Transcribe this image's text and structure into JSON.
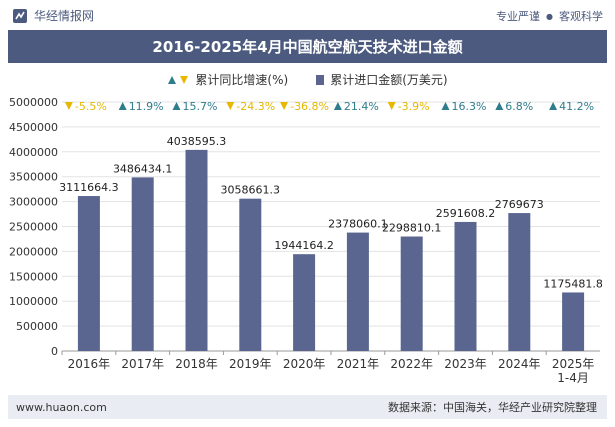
{
  "header": {
    "brand": "华经情报网",
    "right_a": "专业严谨",
    "right_sep": "●",
    "right_b": "客观科学"
  },
  "footer": {
    "url": "www.huaon.com",
    "source": "数据来源：中国海关，华经产业研究院整理"
  },
  "colors": {
    "bar": "#5a6690",
    "up": "#2e7d8c",
    "down": "#e6b800",
    "title_bg": "#4b5a7e"
  },
  "chart_data": {
    "type": "bar",
    "title": "2016-2025年4月中国航空航天技术进口金额",
    "categories": [
      "2016年",
      "2017年",
      "2018年",
      "2019年",
      "2020年",
      "2021年",
      "2022年",
      "2023年",
      "2024年",
      "2025年\n1-4月"
    ],
    "series": [
      {
        "name": "累计进口金额(万美元)",
        "values": [
          3111664.3,
          3486434.1,
          4038595.3,
          3058661.3,
          1944164.2,
          2378060.1,
          2298810.1,
          2591608.2,
          2769673,
          1175481.8
        ],
        "labels": [
          "3111664.3",
          "3486434.1",
          "4038595.3",
          "3058661.3",
          "1944164.2",
          "2378060.1",
          "2298810.1",
          "2591608.2",
          "2769673",
          "1175481.8"
        ]
      },
      {
        "name": "累计同比增速(%)",
        "values": [
          -5.5,
          11.9,
          15.7,
          -24.3,
          -36.8,
          21.4,
          -3.9,
          16.3,
          6.8,
          41.2
        ],
        "labels": [
          "-5.5%",
          "11.9%",
          "15.7%",
          "-24.3%",
          "-36.8%",
          "21.4%",
          "-3.9%",
          "16.3%",
          "6.8%",
          "41.2%"
        ]
      }
    ],
    "yticks": [
      "0",
      "500000",
      "1000000",
      "1500000",
      "2000000",
      "2500000",
      "3000000",
      "3500000",
      "4000000",
      "4500000",
      "5000000"
    ],
    "ylim": [
      0,
      5000000
    ],
    "legend_position": "top-center",
    "grid": true
  }
}
